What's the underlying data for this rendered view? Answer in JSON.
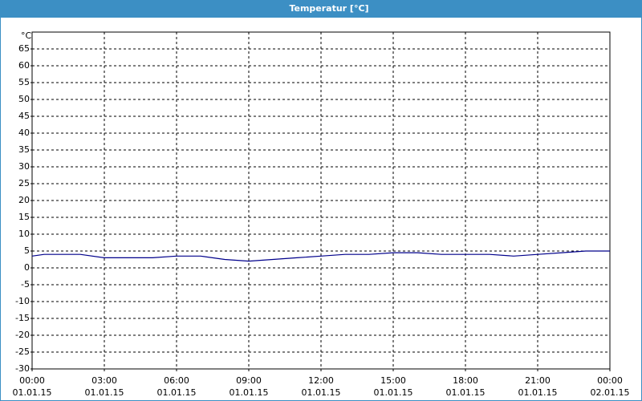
{
  "chart_data": {
    "type": "line",
    "title": "Temperatur [°C]",
    "y_label": "°C",
    "x": [
      0,
      0.5,
      1,
      2,
      3,
      4,
      5,
      6,
      7,
      8,
      9,
      10,
      11,
      12,
      13,
      14,
      15,
      16,
      17,
      18,
      19,
      20,
      21,
      22,
      23,
      24
    ],
    "series": [
      {
        "color": "#00008b",
        "values": [
          3.5,
          4,
          4,
          4,
          3,
          3,
          3,
          3.5,
          3.5,
          2.5,
          2,
          2.5,
          3,
          3.5,
          4,
          4,
          4.5,
          4.5,
          4,
          4,
          4,
          3.5,
          4,
          4.5,
          5,
          5
        ]
      }
    ],
    "xlim": [
      0,
      24
    ],
    "xticks": [
      {
        "value": 0,
        "label": [
          "00:00",
          "01.01.15"
        ]
      },
      {
        "value": 3,
        "label": [
          "03:00",
          "01.01.15"
        ]
      },
      {
        "value": 6,
        "label": [
          "06:00",
          "01.01.15"
        ]
      },
      {
        "value": 9,
        "label": [
          "09:00",
          "01.01.15"
        ]
      },
      {
        "value": 12,
        "label": [
          "12:00",
          "01.01.15"
        ]
      },
      {
        "value": 15,
        "label": [
          "15:00",
          "01.01.15"
        ]
      },
      {
        "value": 18,
        "label": [
          "18:00",
          "01.01.15"
        ]
      },
      {
        "value": 21,
        "label": [
          "21:00",
          "01.01.15"
        ]
      },
      {
        "value": 24,
        "label": [
          "00:00",
          "02.01.15"
        ]
      }
    ],
    "ylim": [
      -30,
      70
    ],
    "yticks": [
      -30,
      -25,
      -20,
      -15,
      -10,
      -5,
      0,
      5,
      10,
      15,
      20,
      25,
      30,
      35,
      40,
      45,
      50,
      55,
      60,
      65
    ],
    "grid": true
  }
}
